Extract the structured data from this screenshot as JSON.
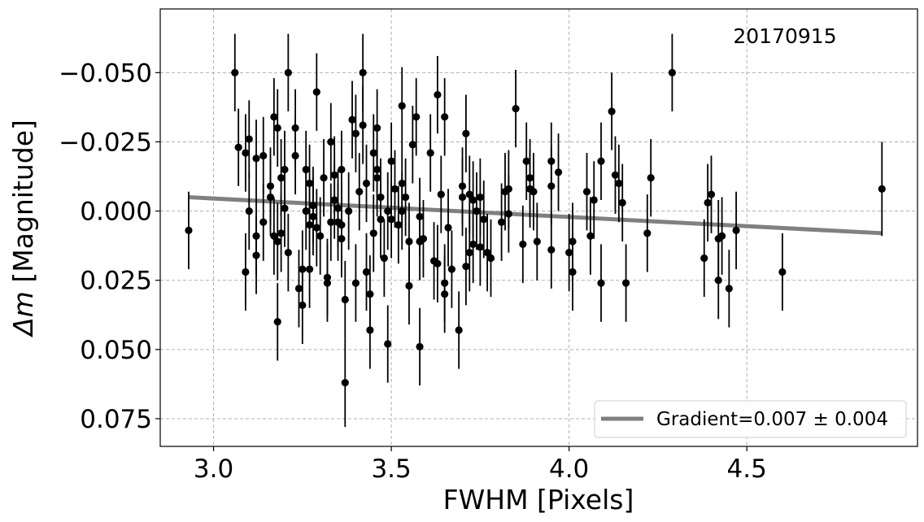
{
  "chart_data": {
    "type": "scatter",
    "title": "",
    "xlabel": "FWHM [Pixels]",
    "ylabel_math": "Δm",
    "ylabel_rest": " [Magnitude]",
    "xlim": [
      2.85,
      4.98
    ],
    "ylim": [
      -0.073,
      0.085
    ],
    "y_inverted": true,
    "x_ticks": [
      3.0,
      3.5,
      4.0,
      4.5
    ],
    "x_tick_labels": [
      "3.0",
      "3.5",
      "4.0",
      "4.5"
    ],
    "y_ticks": [
      -0.05,
      -0.025,
      0.0,
      0.025,
      0.05,
      0.075
    ],
    "y_tick_labels": [
      "−0.050",
      "−0.025",
      "0.000",
      "0.025",
      "0.050",
      "0.075"
    ],
    "grid": true,
    "annotation": "20170915",
    "legend": {
      "label": "Gradient=0.007 ± 0.004",
      "position": "lower-right"
    },
    "colors": {
      "points": "#000000",
      "fit_line": "#808080",
      "grid": "#b0b0b0"
    },
    "fit_line": {
      "x": [
        2.93,
        4.88
      ],
      "y": [
        -0.005,
        0.008
      ]
    },
    "points": [
      {
        "x": 2.93,
        "y": 0.007,
        "err": 0.014
      },
      {
        "x": 3.06,
        "y": -0.05,
        "err": 0.014
      },
      {
        "x": 3.07,
        "y": -0.023,
        "err": 0.014
      },
      {
        "x": 3.09,
        "y": -0.021,
        "err": 0.014
      },
      {
        "x": 3.09,
        "y": 0.022,
        "err": 0.014
      },
      {
        "x": 3.1,
        "y": -0.026,
        "err": 0.014
      },
      {
        "x": 3.1,
        "y": 0.0,
        "err": 0.014
      },
      {
        "x": 3.12,
        "y": -0.019,
        "err": 0.014
      },
      {
        "x": 3.12,
        "y": 0.009,
        "err": 0.014
      },
      {
        "x": 3.12,
        "y": 0.016,
        "err": 0.014
      },
      {
        "x": 3.14,
        "y": -0.02,
        "err": 0.014
      },
      {
        "x": 3.14,
        "y": 0.004,
        "err": 0.014
      },
      {
        "x": 3.16,
        "y": -0.009,
        "err": 0.014
      },
      {
        "x": 3.16,
        "y": -0.005,
        "err": 0.014
      },
      {
        "x": 3.17,
        "y": 0.009,
        "err": 0.014
      },
      {
        "x": 3.17,
        "y": -0.034,
        "err": 0.014
      },
      {
        "x": 3.18,
        "y": -0.03,
        "err": 0.014
      },
      {
        "x": 3.18,
        "y": 0.011,
        "err": 0.014
      },
      {
        "x": 3.18,
        "y": 0.04,
        "err": 0.014
      },
      {
        "x": 3.19,
        "y": -0.012,
        "err": 0.014
      },
      {
        "x": 3.19,
        "y": 0.008,
        "err": 0.014
      },
      {
        "x": 3.2,
        "y": -0.015,
        "err": 0.014
      },
      {
        "x": 3.2,
        "y": -0.001,
        "err": 0.014
      },
      {
        "x": 3.21,
        "y": -0.05,
        "err": 0.014
      },
      {
        "x": 3.21,
        "y": 0.015,
        "err": 0.014
      },
      {
        "x": 3.23,
        "y": -0.02,
        "err": 0.014
      },
      {
        "x": 3.23,
        "y": -0.03,
        "err": 0.014
      },
      {
        "x": 3.24,
        "y": 0.028,
        "err": 0.014
      },
      {
        "x": 3.25,
        "y": 0.021,
        "err": 0.014
      },
      {
        "x": 3.25,
        "y": 0.034,
        "err": 0.014
      },
      {
        "x": 3.26,
        "y": -0.015,
        "err": 0.014
      },
      {
        "x": 3.26,
        "y": 0.0,
        "err": 0.014
      },
      {
        "x": 3.27,
        "y": -0.01,
        "err": 0.014
      },
      {
        "x": 3.27,
        "y": 0.005,
        "err": 0.014
      },
      {
        "x": 3.27,
        "y": 0.021,
        "err": 0.014
      },
      {
        "x": 3.28,
        "y": -0.002,
        "err": 0.014
      },
      {
        "x": 3.28,
        "y": 0.002,
        "err": 0.014
      },
      {
        "x": 3.29,
        "y": -0.043,
        "err": 0.014
      },
      {
        "x": 3.29,
        "y": 0.006,
        "err": 0.014
      },
      {
        "x": 3.3,
        "y": 0.009,
        "err": 0.014
      },
      {
        "x": 3.31,
        "y": -0.012,
        "err": 0.014
      },
      {
        "x": 3.32,
        "y": 0.024,
        "err": 0.014
      },
      {
        "x": 3.32,
        "y": 0.026,
        "err": 0.014
      },
      {
        "x": 3.33,
        "y": -0.025,
        "err": 0.014
      },
      {
        "x": 3.33,
        "y": 0.004,
        "err": 0.014
      },
      {
        "x": 3.34,
        "y": -0.013,
        "err": 0.014
      },
      {
        "x": 3.34,
        "y": -0.004,
        "err": 0.014
      },
      {
        "x": 3.35,
        "y": -0.001,
        "err": 0.014
      },
      {
        "x": 3.35,
        "y": 0.004,
        "err": 0.014
      },
      {
        "x": 3.36,
        "y": -0.015,
        "err": 0.014
      },
      {
        "x": 3.36,
        "y": 0.005,
        "err": 0.014
      },
      {
        "x": 3.36,
        "y": 0.01,
        "err": 0.014
      },
      {
        "x": 3.37,
        "y": 0.062,
        "err": 0.016
      },
      {
        "x": 3.37,
        "y": 0.032,
        "err": 0.014
      },
      {
        "x": 3.38,
        "y": 0.0,
        "err": 0.014
      },
      {
        "x": 3.39,
        "y": -0.033,
        "err": 0.014
      },
      {
        "x": 3.4,
        "y": 0.026,
        "err": 0.014
      },
      {
        "x": 3.4,
        "y": -0.028,
        "err": 0.014
      },
      {
        "x": 3.41,
        "y": -0.007,
        "err": 0.014
      },
      {
        "x": 3.42,
        "y": -0.05,
        "err": 0.014
      },
      {
        "x": 3.42,
        "y": -0.031,
        "err": 0.014
      },
      {
        "x": 3.43,
        "y": -0.01,
        "err": 0.014
      },
      {
        "x": 3.43,
        "y": 0.022,
        "err": 0.014
      },
      {
        "x": 3.44,
        "y": 0.03,
        "err": 0.014
      },
      {
        "x": 3.44,
        "y": 0.043,
        "err": 0.014
      },
      {
        "x": 3.45,
        "y": -0.021,
        "err": 0.014
      },
      {
        "x": 3.45,
        "y": 0.008,
        "err": 0.014
      },
      {
        "x": 3.46,
        "y": -0.03,
        "err": 0.014
      },
      {
        "x": 3.46,
        "y": -0.015,
        "err": 0.014
      },
      {
        "x": 3.46,
        "y": -0.012,
        "err": 0.014
      },
      {
        "x": 3.47,
        "y": 0.003,
        "err": 0.014
      },
      {
        "x": 3.47,
        "y": -0.005,
        "err": 0.014
      },
      {
        "x": 3.48,
        "y": 0.017,
        "err": 0.014
      },
      {
        "x": 3.49,
        "y": 0.048,
        "err": 0.014
      },
      {
        "x": 3.49,
        "y": 0.0,
        "err": 0.014
      },
      {
        "x": 3.5,
        "y": -0.018,
        "err": 0.014
      },
      {
        "x": 3.5,
        "y": 0.003,
        "err": 0.014
      },
      {
        "x": 3.51,
        "y": -0.008,
        "err": 0.014
      },
      {
        "x": 3.52,
        "y": 0.005,
        "err": 0.014
      },
      {
        "x": 3.53,
        "y": 0.0,
        "err": 0.014
      },
      {
        "x": 3.53,
        "y": -0.038,
        "err": 0.014
      },
      {
        "x": 3.53,
        "y": -0.01,
        "err": 0.014
      },
      {
        "x": 3.54,
        "y": -0.005,
        "err": 0.014
      },
      {
        "x": 3.55,
        "y": 0.011,
        "err": 0.014
      },
      {
        "x": 3.55,
        "y": 0.027,
        "err": 0.014
      },
      {
        "x": 3.56,
        "y": -0.024,
        "err": 0.014
      },
      {
        "x": 3.57,
        "y": -0.034,
        "err": 0.014
      },
      {
        "x": 3.58,
        "y": 0.002,
        "err": 0.014
      },
      {
        "x": 3.58,
        "y": 0.011,
        "err": 0.014
      },
      {
        "x": 3.58,
        "y": 0.049,
        "err": 0.014
      },
      {
        "x": 3.59,
        "y": 0.01,
        "err": 0.014
      },
      {
        "x": 3.61,
        "y": -0.021,
        "err": 0.014
      },
      {
        "x": 3.62,
        "y": 0.018,
        "err": 0.014
      },
      {
        "x": 3.63,
        "y": -0.042,
        "err": 0.014
      },
      {
        "x": 3.63,
        "y": 0.019,
        "err": 0.014
      },
      {
        "x": 3.64,
        "y": -0.006,
        "err": 0.014
      },
      {
        "x": 3.65,
        "y": 0.026,
        "err": 0.014
      },
      {
        "x": 3.65,
        "y": -0.034,
        "err": 0.014
      },
      {
        "x": 3.65,
        "y": 0.03,
        "err": 0.014
      },
      {
        "x": 3.66,
        "y": 0.006,
        "err": 0.014
      },
      {
        "x": 3.67,
        "y": 0.021,
        "err": 0.014
      },
      {
        "x": 3.69,
        "y": 0.043,
        "err": 0.014
      },
      {
        "x": 3.7,
        "y": -0.009,
        "err": 0.014
      },
      {
        "x": 3.7,
        "y": -0.005,
        "err": 0.014
      },
      {
        "x": 3.71,
        "y": -0.028,
        "err": 0.014
      },
      {
        "x": 3.71,
        "y": 0.02,
        "err": 0.014
      },
      {
        "x": 3.72,
        "y": -0.006,
        "err": 0.014
      },
      {
        "x": 3.72,
        "y": 0.015,
        "err": 0.014
      },
      {
        "x": 3.73,
        "y": 0.012,
        "err": 0.014
      },
      {
        "x": 3.73,
        "y": -0.004,
        "err": 0.014
      },
      {
        "x": 3.74,
        "y": 0.0,
        "err": 0.014
      },
      {
        "x": 3.75,
        "y": 0.013,
        "err": 0.014
      },
      {
        "x": 3.75,
        "y": -0.005,
        "err": 0.014
      },
      {
        "x": 3.76,
        "y": 0.003,
        "err": 0.014
      },
      {
        "x": 3.77,
        "y": 0.015,
        "err": 0.014
      },
      {
        "x": 3.78,
        "y": 0.017,
        "err": 0.014
      },
      {
        "x": 3.81,
        "y": 0.004,
        "err": 0.014
      },
      {
        "x": 3.82,
        "y": -0.007,
        "err": 0.014
      },
      {
        "x": 3.83,
        "y": -0.008,
        "err": 0.014
      },
      {
        "x": 3.83,
        "y": 0.001,
        "err": 0.014
      },
      {
        "x": 3.85,
        "y": -0.037,
        "err": 0.014
      },
      {
        "x": 3.87,
        "y": 0.012,
        "err": 0.014
      },
      {
        "x": 3.88,
        "y": -0.018,
        "err": 0.014
      },
      {
        "x": 3.89,
        "y": -0.012,
        "err": 0.014
      },
      {
        "x": 3.89,
        "y": -0.008,
        "err": 0.014
      },
      {
        "x": 3.9,
        "y": -0.007,
        "err": 0.014
      },
      {
        "x": 3.91,
        "y": 0.011,
        "err": 0.014
      },
      {
        "x": 3.95,
        "y": -0.018,
        "err": 0.014
      },
      {
        "x": 3.95,
        "y": -0.009,
        "err": 0.014
      },
      {
        "x": 3.95,
        "y": 0.014,
        "err": 0.014
      },
      {
        "x": 3.97,
        "y": -0.014,
        "err": 0.014
      },
      {
        "x": 4.0,
        "y": 0.015,
        "err": 0.014
      },
      {
        "x": 4.01,
        "y": 0.011,
        "err": 0.014
      },
      {
        "x": 4.01,
        "y": 0.022,
        "err": 0.014
      },
      {
        "x": 4.05,
        "y": -0.007,
        "err": 0.014
      },
      {
        "x": 4.06,
        "y": 0.009,
        "err": 0.014
      },
      {
        "x": 4.07,
        "y": -0.004,
        "err": 0.014
      },
      {
        "x": 4.09,
        "y": 0.026,
        "err": 0.014
      },
      {
        "x": 4.09,
        "y": -0.018,
        "err": 0.014
      },
      {
        "x": 4.12,
        "y": -0.036,
        "err": 0.014
      },
      {
        "x": 4.13,
        "y": -0.013,
        "err": 0.014
      },
      {
        "x": 4.14,
        "y": -0.01,
        "err": 0.014
      },
      {
        "x": 4.15,
        "y": -0.003,
        "err": 0.014
      },
      {
        "x": 4.16,
        "y": 0.026,
        "err": 0.014
      },
      {
        "x": 4.22,
        "y": 0.008,
        "err": 0.014
      },
      {
        "x": 4.23,
        "y": -0.012,
        "err": 0.014
      },
      {
        "x": 4.29,
        "y": -0.05,
        "err": 0.014
      },
      {
        "x": 4.38,
        "y": 0.017,
        "err": 0.014
      },
      {
        "x": 4.39,
        "y": -0.003,
        "err": 0.014
      },
      {
        "x": 4.4,
        "y": -0.006,
        "err": 0.014
      },
      {
        "x": 4.42,
        "y": 0.01,
        "err": 0.014
      },
      {
        "x": 4.42,
        "y": 0.025,
        "err": 0.014
      },
      {
        "x": 4.43,
        "y": 0.009,
        "err": 0.014
      },
      {
        "x": 4.45,
        "y": 0.028,
        "err": 0.014
      },
      {
        "x": 4.47,
        "y": 0.007,
        "err": 0.014
      },
      {
        "x": 4.6,
        "y": 0.022,
        "err": 0.014
      },
      {
        "x": 4.88,
        "y": -0.008,
        "err": 0.017
      }
    ]
  }
}
